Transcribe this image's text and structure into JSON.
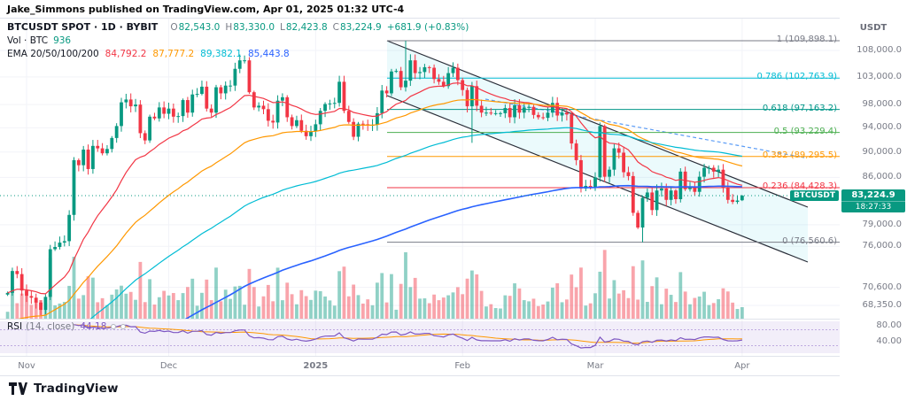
{
  "attribution": "Jake_Simmons published on TradingView.com, Apr 01, 2025 01:32 UTC-4",
  "legend": {
    "title": "BTCUSDT SPOT · 1D · BYBIT",
    "ohlc": [
      {
        "k": "O",
        "v": "82,543.0"
      },
      {
        "k": "H",
        "v": "83,330.0"
      },
      {
        "k": "L",
        "v": "82,423.8"
      },
      {
        "k": "C",
        "v": "83,224.9"
      }
    ],
    "change": "+681.9 (+0.83%)",
    "vol_label": "Vol · BTC",
    "vol_value": "936",
    "ema_label": "EMA 20/50/100/200",
    "ema_values": [
      "84,792.2",
      "87,777.2",
      "89,382.1",
      "85,443.8"
    ],
    "ema_colors": [
      "#f23645",
      "#ff9800",
      "#00bcd4",
      "#2962ff"
    ]
  },
  "rsi_legend": {
    "name": "RSI",
    "params": "(14, close)",
    "value": "44.18"
  },
  "price_scale": {
    "currency": "USDT",
    "ticks": [
      {
        "label": "108,000.0",
        "p": 108000
      },
      {
        "label": "103,000.0",
        "p": 103000
      },
      {
        "label": "98,000.0",
        "p": 98000
      },
      {
        "label": "94,000.0",
        "p": 94000
      },
      {
        "label": "90,000.0",
        "p": 90000
      },
      {
        "label": "86,000.0",
        "p": 86000
      },
      {
        "label": "79,000.0",
        "p": 79000
      },
      {
        "label": "76,000.0",
        "p": 76000
      },
      {
        "label": "70,600.0",
        "p": 70600
      },
      {
        "label": "68,350.0",
        "p": 68350
      }
    ],
    "rsi_ticks": [
      {
        "label": "80.00",
        "r": 80
      },
      {
        "label": "40.00",
        "r": 40
      }
    ],
    "last_price": "83,224.9",
    "countdown": "18:27:33",
    "symbol_label": "BTCUSDT"
  },
  "footer": {
    "brand": "TradingView"
  },
  "chart_data": {
    "type": "candlestick",
    "symbol": "BTCUSDT SPOT",
    "exchange": "BYBIT",
    "interval": "1D",
    "x_range": [
      "2024-10-28",
      "2025-04-01"
    ],
    "price_axis": {
      "scale": "log",
      "currency": "USDT"
    },
    "last": {
      "o": 82543.0,
      "h": 83330.0,
      "l": 82423.8,
      "c": 83224.9,
      "change": 681.9,
      "change_pct": 0.83,
      "volume_btc": 936
    },
    "ema_periods": [
      20,
      50,
      100,
      200
    ],
    "ema_last": [
      84792.2,
      87777.2,
      89382.1,
      85443.8
    ],
    "rsi_period": 14,
    "rsi_last": 44.18,
    "fib_levels": [
      {
        "label": "1 (109,898.1)",
        "ratio": 1,
        "value": 109898.1,
        "color": "#787b86"
      },
      {
        "label": "0.786 (102,763.9)",
        "ratio": 0.786,
        "value": 102763.9,
        "color": "#00bcd4"
      },
      {
        "label": "0.618 (97,163.2)",
        "ratio": 0.618,
        "value": 97163.2,
        "color": "#009688"
      },
      {
        "label": "0.5 (93,229.4)",
        "ratio": 0.5,
        "value": 93229.4,
        "color": "#4caf50"
      },
      {
        "label": "0.382 (89,295.5)",
        "ratio": 0.382,
        "value": 89295.5,
        "color": "#ff9800"
      },
      {
        "label": "0.236 (84,428.3)",
        "ratio": 0.236,
        "value": 84428.3,
        "color": "#f23645"
      },
      {
        "label": "0 (76,560.6)",
        "ratio": 0,
        "value": 76560.6,
        "color": "#787b86"
      }
    ],
    "time_ticks": [
      {
        "label": "Nov",
        "i": 4
      },
      {
        "label": "Dec",
        "i": 34
      },
      {
        "label": "2025",
        "i": 65
      },
      {
        "label": "Feb",
        "i": 96
      },
      {
        "label": "Mar",
        "i": 124
      },
      {
        "label": "Apr",
        "i": 155
      }
    ],
    "closes": [
      69900,
      72700,
      72300,
      70200,
      69500,
      69300,
      68700,
      67800,
      69400,
      75600,
      75900,
      76500,
      76700,
      80400,
      88700,
      87900,
      90400,
      87300,
      91000,
      90600,
      89800,
      90500,
      92300,
      94300,
      98400,
      98900,
      97700,
      98000,
      93100,
      91900,
      95900,
      95600,
      97500,
      96400,
      97300,
      95900,
      96000,
      98800,
      96600,
      99800,
      99900,
      101200,
      97300,
      96600,
      101100,
      100000,
      101400,
      101400,
      104500,
      106100,
      106100,
      100200,
      97500,
      97800,
      97200,
      95200,
      94900,
      98700,
      99300,
      95800,
      94300,
      95300,
      93500,
      92600,
      93400,
      94600,
      96900,
      98100,
      98200,
      98300,
      102100,
      96900,
      95000,
      92500,
      94700,
      94600,
      94500,
      94500,
      96500,
      100500,
      100000,
      104000,
      104100,
      101100,
      102300,
      106100,
      103700,
      103900,
      104800,
      104700,
      102600,
      102100,
      101300,
      103700,
      104700,
      102400,
      100600,
      97700,
      101300,
      97800,
      96600,
      96600,
      96500,
      96500,
      96500,
      97400,
      95800,
      97900,
      96600,
      97500,
      97600,
      96200,
      95800,
      95700,
      96600,
      98300,
      96100,
      96600,
      96300,
      91400,
      88700,
      84300,
      84700,
      84400,
      86000,
      94300,
      86100,
      87200,
      90600,
      89900,
      86800,
      86200,
      80700,
      78600,
      82900,
      83700,
      81100,
      84000,
      84300,
      82600,
      84000,
      82700,
      86900,
      84200,
      84400,
      83800,
      86100,
      87500,
      87500,
      86900,
      87200,
      84400,
      82600,
      82300,
      82500,
      83224.9
    ],
    "overrides": {
      "84": {
        "h": 109898.1
      },
      "98": {
        "l": 91500
      },
      "134": {
        "l": 76560.6
      },
      "155": {
        "o": 82543.0,
        "h": 83330.0,
        "l": 82423.8,
        "c": 83224.9
      }
    }
  }
}
